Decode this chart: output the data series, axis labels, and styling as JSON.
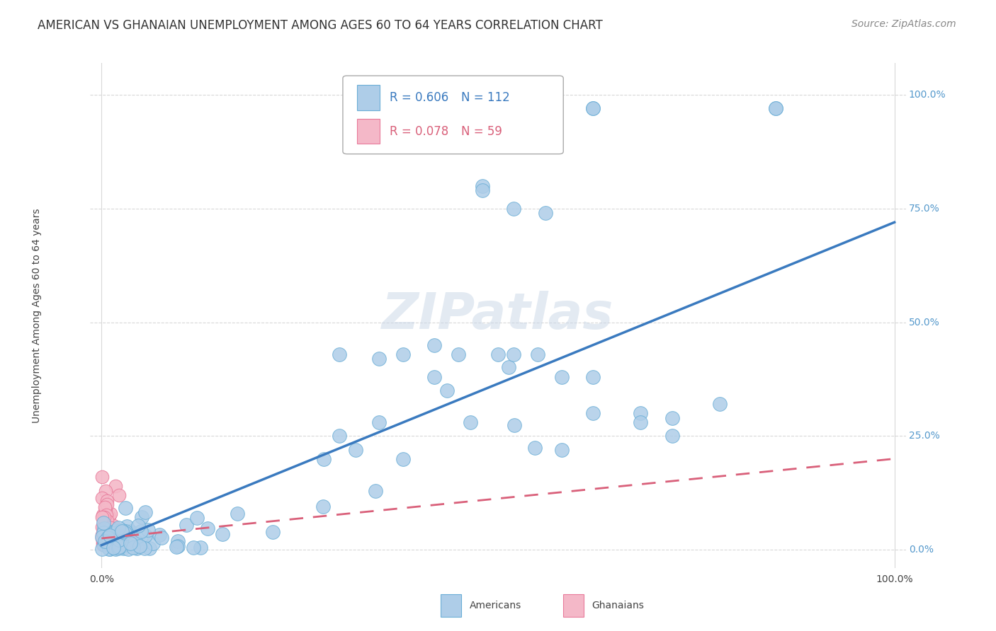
{
  "title": "AMERICAN VS GHANAIAN UNEMPLOYMENT AMONG AGES 60 TO 64 YEARS CORRELATION CHART",
  "source": "Source: ZipAtlas.com",
  "ylabel": "Unemployment Among Ages 60 to 64 years",
  "y_tick_labels": [
    "0.0%",
    "25.0%",
    "50.0%",
    "75.0%",
    "100.0%"
  ],
  "y_tick_values": [
    0.0,
    0.25,
    0.5,
    0.75,
    1.0
  ],
  "x_tick_labels": [
    "0.0%",
    "100.0%"
  ],
  "x_tick_values": [
    0.0,
    1.0
  ],
  "legend_R1": "R = 0.606",
  "legend_N1": "N = 112",
  "legend_R2": "R = 0.078",
  "legend_N2": "N = 59",
  "watermark": "ZIPatlas",
  "american_color": "#aecde8",
  "american_edge": "#6aaed6",
  "ghanaian_color": "#f4b8c8",
  "ghanaian_edge": "#e87a9a",
  "trend_american_color": "#3a7abf",
  "trend_ghanaian_color": "#d9607a",
  "background_color": "#ffffff",
  "grid_color": "#d8d8d8",
  "am_trend_x0": 0.0,
  "am_trend_y0": 0.01,
  "am_trend_x1": 1.0,
  "am_trend_y1": 0.72,
  "gh_trend_x0": 0.0,
  "gh_trend_y0": 0.025,
  "gh_trend_x1": 1.0,
  "gh_trend_y1": 0.2,
  "title_fontsize": 12,
  "source_fontsize": 10,
  "axis_label_fontsize": 10,
  "tick_label_fontsize": 10,
  "legend_fontsize": 12,
  "marker_size_am": 200,
  "marker_size_gh": 180,
  "american_N": 112,
  "ghanaian_N": 59
}
